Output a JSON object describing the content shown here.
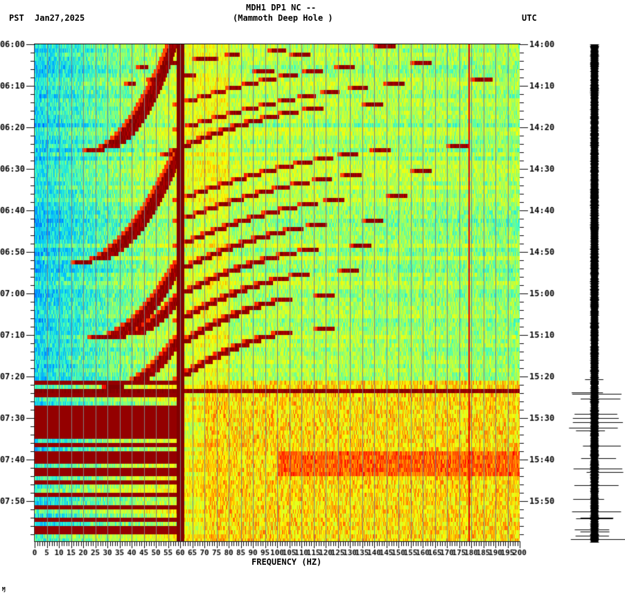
{
  "header": {
    "title_line1": "MDH1 DP1 NC --",
    "title_line2": "(Mammoth Deep Hole )",
    "left_tz": "PST",
    "date": "Jan27,2025",
    "right_tz": "UTC"
  },
  "footer": {
    "xlabel": "FREQUENCY (HZ)",
    "corner_mark": "Ɱ"
  },
  "colors": {
    "background": "#ffffff",
    "axis": "#000000",
    "gridline": "#808080",
    "colormap": [
      "#00008f",
      "#0050ff",
      "#00c0ff",
      "#40ffc0",
      "#c0ff40",
      "#ffff00",
      "#ff8000",
      "#ff0000",
      "#800000"
    ]
  },
  "chart_data": {
    "type": "heatmap",
    "title": "MDH1 DP1 NC -- (Mammoth Deep Hole )",
    "subtitle": "Jan27,2025",
    "xlabel": "FREQUENCY (HZ)",
    "ylabel_left": "PST",
    "ylabel_right": "UTC",
    "xlim": [
      0,
      200
    ],
    "x_ticks": [
      0,
      5,
      10,
      15,
      20,
      25,
      30,
      35,
      40,
      45,
      50,
      55,
      60,
      65,
      70,
      75,
      80,
      85,
      90,
      95,
      100,
      105,
      110,
      115,
      120,
      125,
      130,
      135,
      140,
      145,
      150,
      155,
      160,
      165,
      170,
      175,
      180,
      185,
      190,
      195,
      200
    ],
    "x_minor_step": 1,
    "y_ticks_left": [
      "06:00",
      "06:10",
      "06:20",
      "06:30",
      "06:40",
      "06:50",
      "07:00",
      "07:10",
      "07:20",
      "07:30",
      "07:40",
      "07:50"
    ],
    "y_ticks_right": [
      "14:00",
      "14:10",
      "14:20",
      "14:30",
      "14:40",
      "14:50",
      "15:00",
      "15:10",
      "15:20",
      "15:30",
      "15:40",
      "15:50"
    ],
    "y_minor_step_min": 2,
    "time_span_min": 120,
    "grid": "vertical lines every 5 Hz (gray)",
    "persistent_lines_hz": [
      {
        "freq": 60,
        "level": "max",
        "width_hz": 1.5
      },
      {
        "freq": 179,
        "level": "high",
        "width_hz": 0.4
      }
    ],
    "broadband_event": {
      "start_time": "07:21",
      "end_time": "08:00",
      "description": "strong broadband energy bands below ~60 Hz, horizontal line at 07:23 across full band"
    },
    "chirp_arcs": [
      {
        "start_min": 0,
        "f0": 68,
        "f1": 145,
        "dur_min": 3
      },
      {
        "start_min": 2,
        "f0": 45,
        "f1": 110,
        "dur_min": 3
      },
      {
        "start_min": 6,
        "f0": 40,
        "f1": 95,
        "dur_min": 3
      },
      {
        "start_min": 0,
        "f0": 25,
        "f1": 57,
        "dur_min": 25,
        "dir": "up"
      },
      {
        "start_min": 4,
        "f0": 60,
        "f1": 160,
        "dur_min": 10
      },
      {
        "start_min": 8,
        "f0": 60,
        "f1": 185,
        "dur_min": 12
      },
      {
        "start_min": 25,
        "f0": 20,
        "f1": 60,
        "dur_min": 27,
        "dir": "up"
      },
      {
        "start_min": 14,
        "f0": 55,
        "f1": 140,
        "dur_min": 12
      },
      {
        "start_min": 24,
        "f0": 60,
        "f1": 175,
        "dur_min": 13
      },
      {
        "start_min": 30,
        "f0": 60,
        "f1": 160,
        "dur_min": 12
      },
      {
        "start_min": 36,
        "f0": 60,
        "f1": 150,
        "dur_min": 12
      },
      {
        "start_min": 52,
        "f0": 27,
        "f1": 60,
        "dur_min": 18,
        "dir": "up"
      },
      {
        "start_min": 42,
        "f0": 60,
        "f1": 140,
        "dur_min": 12
      },
      {
        "start_min": 48,
        "f0": 60,
        "f1": 135,
        "dur_min": 12
      },
      {
        "start_min": 54,
        "f0": 60,
        "f1": 130,
        "dur_min": 12
      },
      {
        "start_min": 60,
        "f0": 34,
        "f1": 60,
        "dur_min": 10,
        "dir": "up"
      },
      {
        "start_min": 60,
        "f0": 60,
        "f1": 120,
        "dur_min": 12
      },
      {
        "start_min": 70,
        "f0": 33,
        "f1": 60,
        "dur_min": 12,
        "dir": "up"
      },
      {
        "start_min": 68,
        "f0": 60,
        "f1": 120,
        "dur_min": 12
      }
    ]
  },
  "seismogram": {
    "trace_color": "#000000",
    "event_start_min": 80,
    "label": "trace"
  }
}
